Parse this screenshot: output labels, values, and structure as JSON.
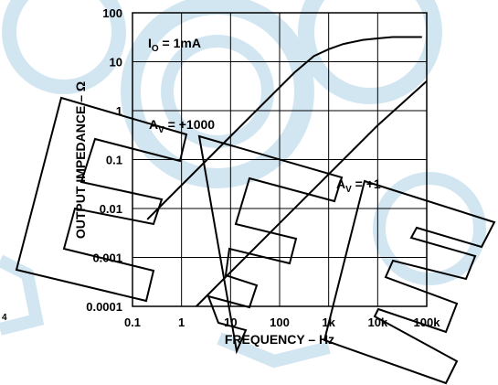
{
  "chart_data": {
    "type": "line",
    "title": "",
    "xlabel": "FREQUENCY – Hz",
    "ylabel": "OUTPUT IMPEDANCE – Ω",
    "x_scale": "log",
    "y_scale": "log",
    "xlim": [
      0.1,
      100000
    ],
    "ylim": [
      0.0001,
      100
    ],
    "x_ticks": [
      0.1,
      1,
      10,
      100,
      1000,
      10000,
      100000
    ],
    "x_tick_labels": [
      "0.1",
      "1",
      "10",
      "100",
      "1k",
      "10k",
      "100k"
    ],
    "y_ticks": [
      0.0001,
      0.001,
      0.01,
      0.1,
      1,
      10,
      100
    ],
    "y_tick_labels": [
      "0.0001",
      "0.001",
      "0.01",
      "0.1",
      "1",
      "10",
      "100"
    ],
    "grid": true,
    "condition_label": "IO = 1mA",
    "condition_main": "I",
    "condition_sub": "O",
    "condition_rest": " = 1mA",
    "series": [
      {
        "name": "AV = +1000",
        "label_main": "A",
        "label_sub": "V",
        "label_rest": " = +1000",
        "x": [
          0.2,
          1,
          10,
          100,
          200,
          500,
          1000,
          2000,
          5000,
          10000,
          20000,
          50000,
          80000
        ],
        "y": [
          0.006,
          0.03,
          0.3,
          3,
          6,
          13,
          18,
          23,
          28,
          30,
          32,
          32,
          32
        ]
      },
      {
        "name": "AV = +1",
        "label_main": "A",
        "label_sub": "V",
        "label_rest": " = +1",
        "x": [
          2,
          10,
          100,
          1000,
          10000,
          100000
        ],
        "y": [
          0.0001,
          0.0005,
          0.005,
          0.05,
          0.5,
          4
        ]
      }
    ]
  },
  "side_stamp": "4"
}
